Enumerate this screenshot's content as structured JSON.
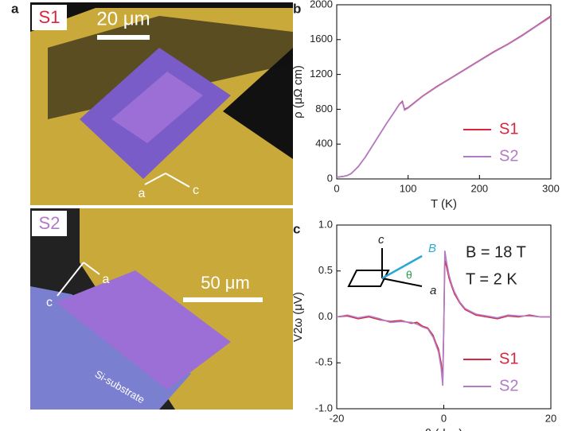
{
  "panels": {
    "a": {
      "label": "a",
      "s1": {
        "label": "S1",
        "scale": "20 μm",
        "axis_a": "a",
        "axis_c": "c"
      },
      "s2": {
        "label": "S2",
        "scale": "50 μm",
        "axis_a": "a",
        "axis_c": "c",
        "substrate": "Si-substrate"
      }
    }
  },
  "chart_data": [
    {
      "type": "line",
      "label": "b",
      "xlabel": "T (K)",
      "ylabel": "ρ (μΩ cm)",
      "xlim": [
        0,
        300
      ],
      "xticks": [
        0,
        100,
        200,
        300
      ],
      "ylim": [
        0,
        2000
      ],
      "yticks": [
        0,
        400,
        800,
        1200,
        1600,
        2000
      ],
      "legend": "lower right",
      "x": [
        0,
        5,
        10,
        15,
        20,
        30,
        40,
        50,
        60,
        70,
        80,
        88,
        92,
        95,
        100,
        120,
        140,
        160,
        180,
        200,
        220,
        240,
        260,
        280,
        300
      ],
      "series": [
        {
          "name": "S1",
          "color": "#d7263d",
          "values": [
            20,
            25,
            30,
            40,
            60,
            140,
            250,
            380,
            510,
            640,
            760,
            860,
            890,
            800,
            820,
            950,
            1060,
            1160,
            1260,
            1360,
            1460,
            1550,
            1650,
            1760,
            1870
          ]
        },
        {
          "name": "S2",
          "color": "#b07cc6",
          "values": [
            20,
            25,
            30,
            40,
            60,
            140,
            250,
            380,
            510,
            640,
            760,
            860,
            880,
            790,
            815,
            945,
            1055,
            1155,
            1255,
            1355,
            1455,
            1545,
            1645,
            1755,
            1860
          ]
        }
      ]
    },
    {
      "type": "line",
      "label": "c",
      "xlabel": "θ (deg)",
      "ylabel": "V2ω (μV)",
      "xlim": [
        -20,
        20
      ],
      "xticks": [
        -20,
        0,
        20
      ],
      "ylim": [
        -1,
        1
      ],
      "yticks": [
        {
          "value": -1,
          "label": "-1.0"
        },
        -0.5,
        {
          "value": 0,
          "label": "0.0"
        },
        0.5,
        {
          "value": 1,
          "label": "1.0"
        }
      ],
      "legend": "lower right",
      "annotations": [
        "B = 18 T",
        "T = 2 K",
        "c",
        "B",
        "θ",
        "a"
      ],
      "x": [
        -20,
        -18,
        -16,
        -14,
        -12,
        -10,
        -8,
        -6,
        -5,
        -4,
        -3,
        -2,
        -1.5,
        -1,
        -0.5,
        -0.2,
        0,
        0.2,
        0.5,
        1,
        1.5,
        2,
        3,
        4,
        5,
        6,
        8,
        10,
        12,
        14,
        16,
        18,
        20
      ],
      "series": [
        {
          "name": "S1",
          "color": "#d7263d",
          "values": [
            0,
            0.01,
            -0.02,
            0,
            -0.03,
            -0.05,
            -0.04,
            -0.07,
            -0.06,
            -0.1,
            -0.12,
            -0.2,
            -0.28,
            -0.35,
            -0.5,
            -0.68,
            -0.1,
            0.62,
            0.55,
            0.42,
            0.33,
            0.25,
            0.15,
            0.08,
            0.05,
            0.02,
            0,
            -0.02,
            0.01,
            0,
            0.02,
            0,
            0
          ]
        },
        {
          "name": "S2",
          "color": "#b07cc6",
          "values": [
            0,
            0.02,
            -0.01,
            0.01,
            -0.02,
            -0.06,
            -0.05,
            -0.06,
            -0.08,
            -0.11,
            -0.13,
            -0.22,
            -0.3,
            -0.38,
            -0.55,
            -0.75,
            -0.12,
            0.72,
            0.6,
            0.45,
            0.35,
            0.27,
            0.16,
            0.09,
            0.06,
            0.03,
            0.01,
            -0.01,
            0.02,
            0.01,
            0.01,
            0,
            0
          ]
        }
      ]
    }
  ]
}
